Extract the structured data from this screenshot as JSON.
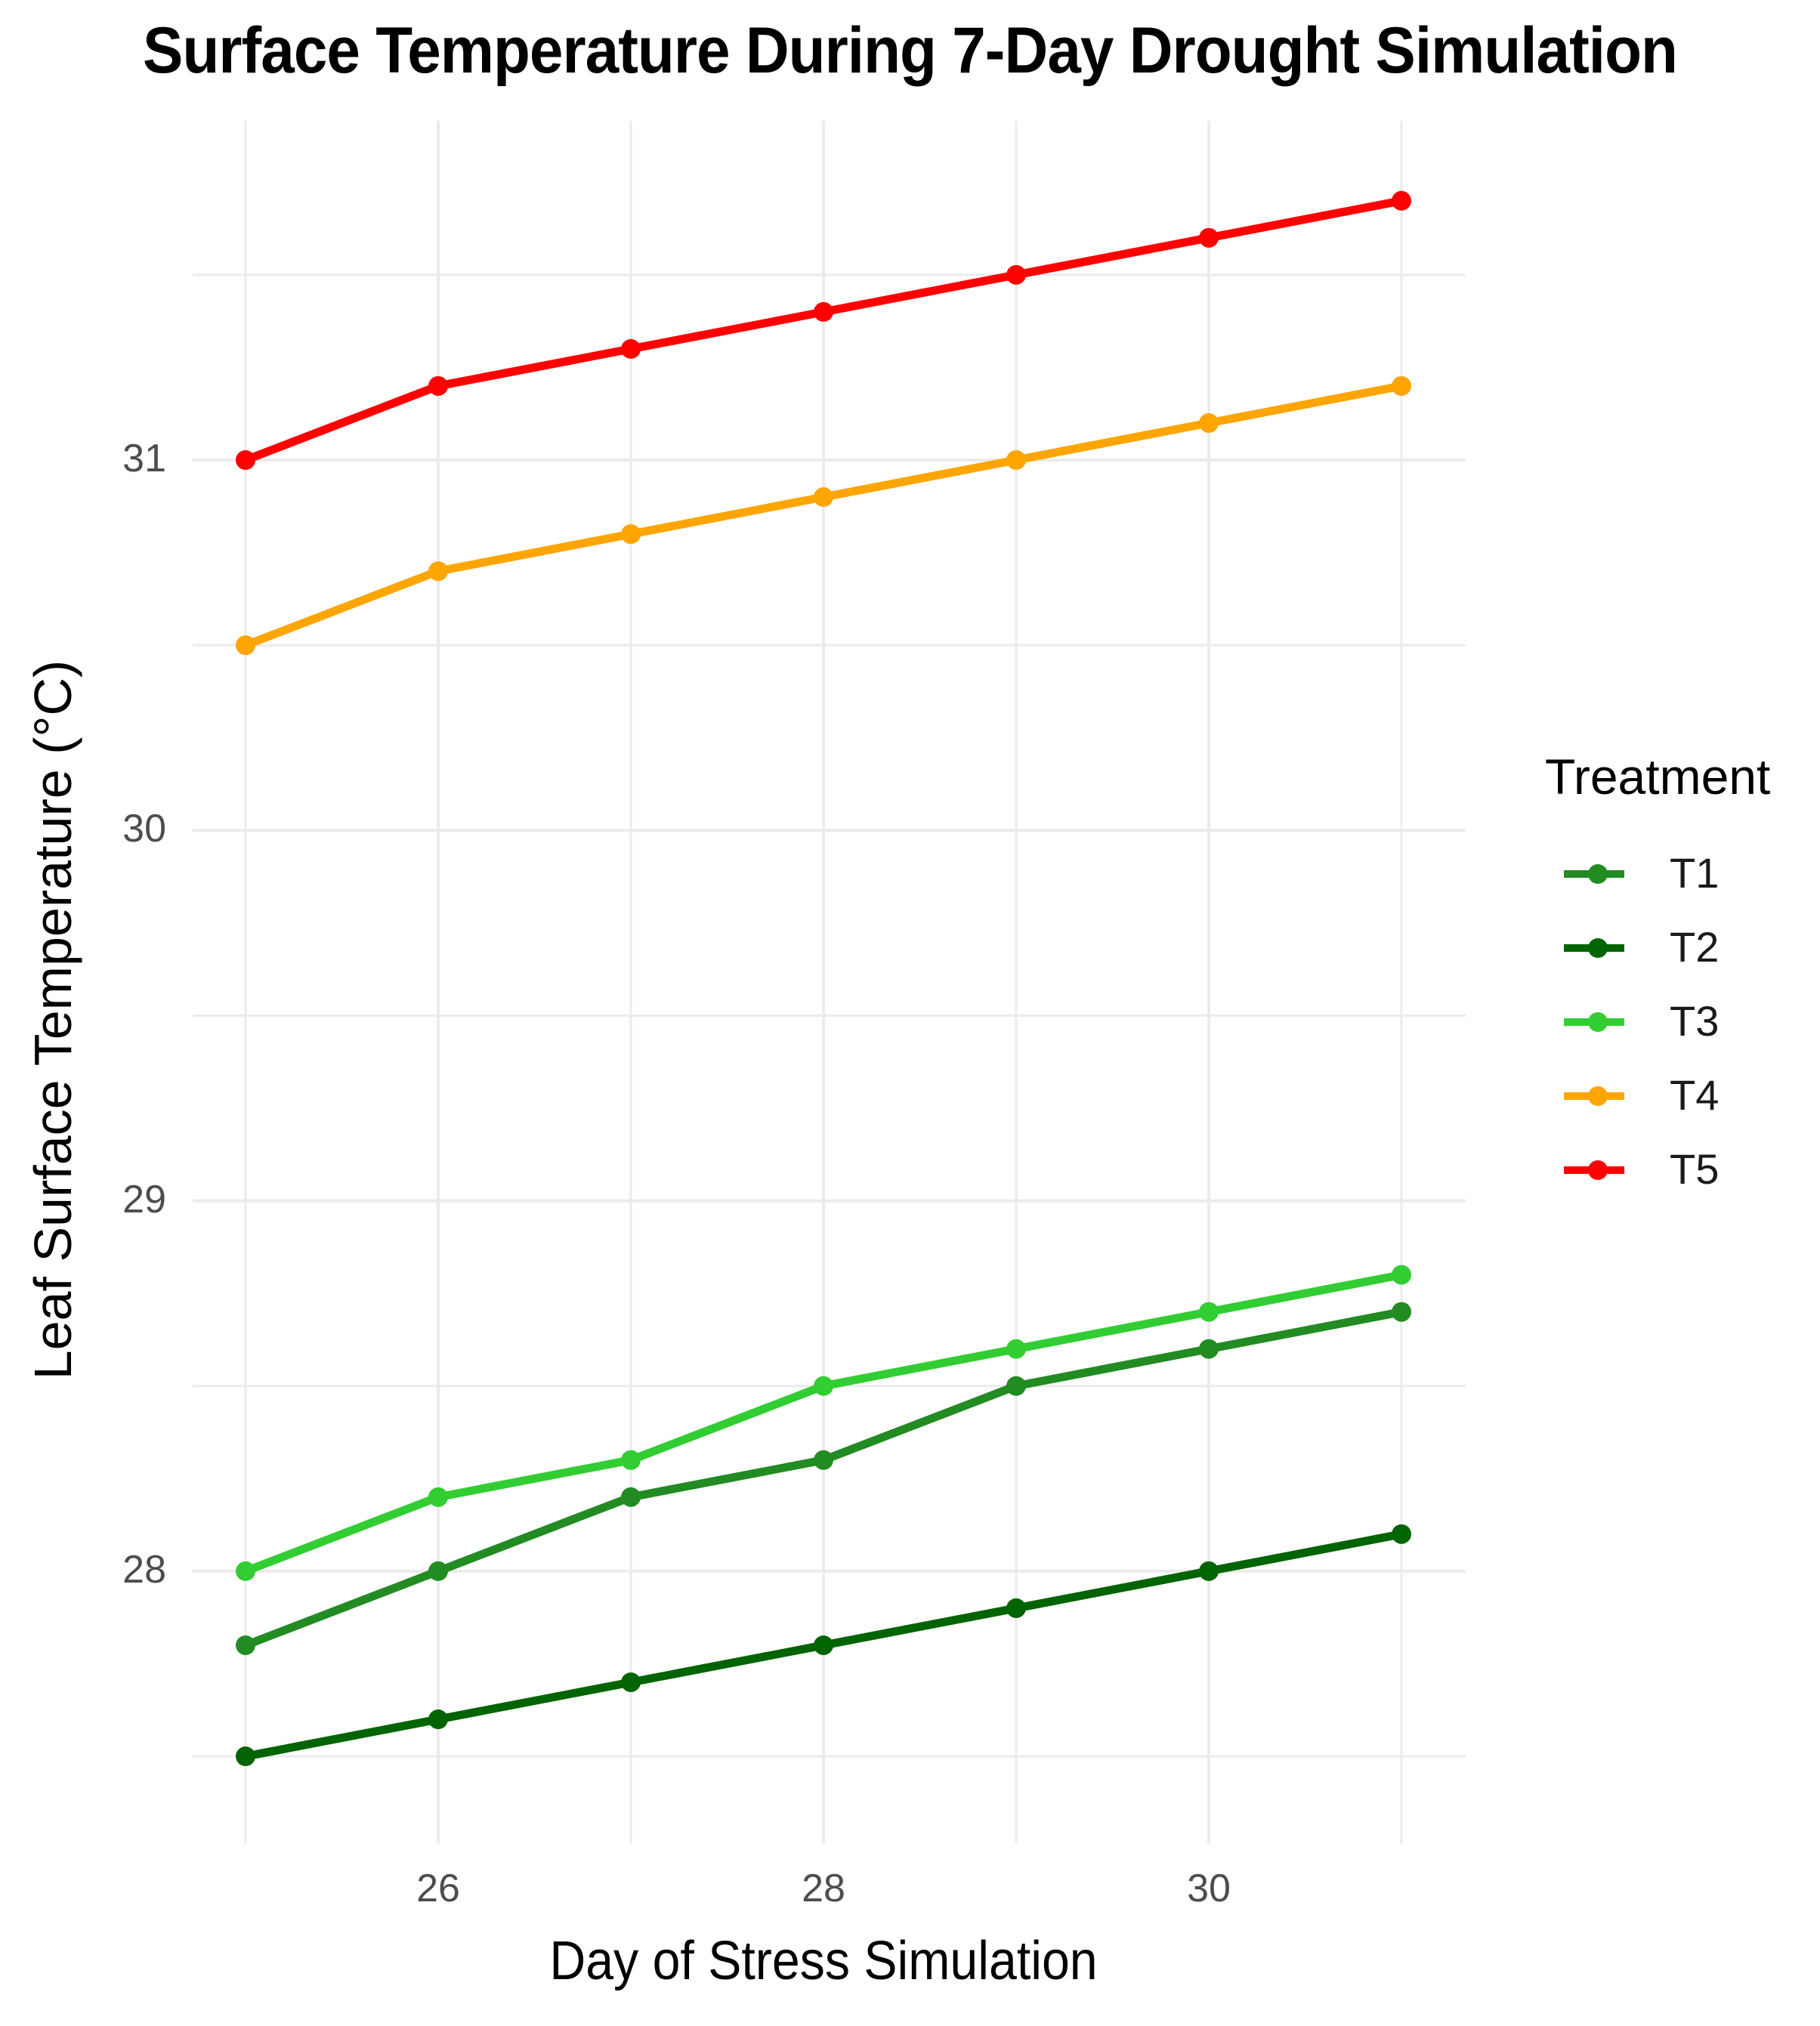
{
  "chart_data": {
    "type": "line",
    "title": "Surface Temperature During 7-Day Drought Simulation",
    "xlabel": "Day of Stress Simulation",
    "ylabel": "Leaf Surface Temperature (°C)",
    "x": [
      25,
      26,
      27,
      28,
      29,
      30,
      31
    ],
    "x_ticks": [
      "26",
      "28",
      "30"
    ],
    "y_ticks": [
      "28",
      "29",
      "30",
      "31"
    ],
    "xlim": [
      24.75,
      31.25
    ],
    "ylim": [
      27.3,
      31.95
    ],
    "grid": true,
    "legend_title": "Treatment",
    "legend_position": "right",
    "series": [
      {
        "name": "T1",
        "color": "#228B22",
        "values": [
          27.8,
          28.0,
          28.2,
          28.3,
          28.5,
          28.6,
          28.7
        ]
      },
      {
        "name": "T2",
        "color": "#006400",
        "values": [
          27.5,
          27.6,
          27.7,
          27.8,
          27.9,
          28.0,
          28.1
        ]
      },
      {
        "name": "T3",
        "color": "#32CD32",
        "values": [
          28.0,
          28.2,
          28.3,
          28.5,
          28.6,
          28.7,
          28.8
        ]
      },
      {
        "name": "T4",
        "color": "#FFA500",
        "values": [
          30.5,
          30.7,
          30.8,
          30.9,
          31.0,
          31.1,
          31.2
        ]
      },
      {
        "name": "T5",
        "color": "#FF0000",
        "values": [
          31.0,
          31.2,
          31.3,
          31.4,
          31.5,
          31.6,
          31.7
        ]
      }
    ]
  }
}
